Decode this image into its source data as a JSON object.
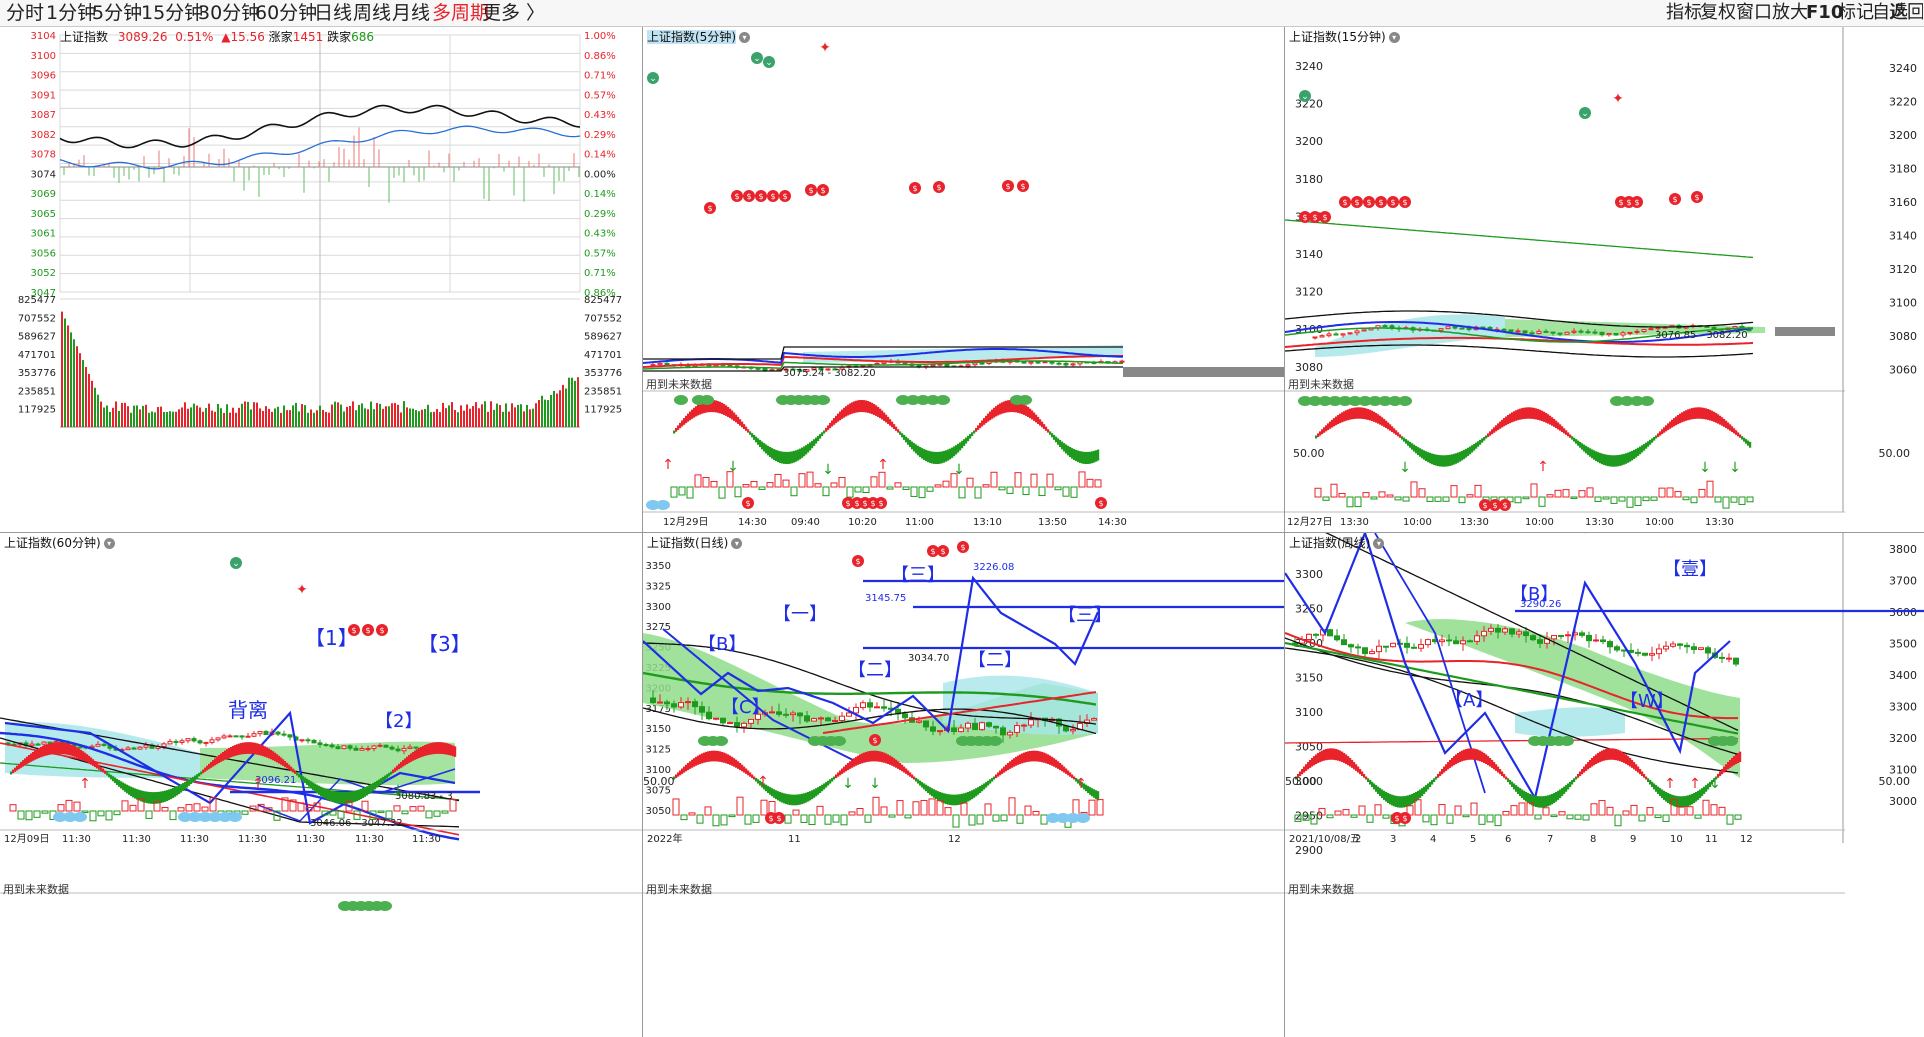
{
  "toolbar": {
    "periods": [
      "分时",
      "1分钟",
      "5分钟",
      "15分钟",
      "30分钟",
      "60分钟",
      "日线",
      "周线",
      "月线",
      "多周期",
      "更多 〉"
    ],
    "active_period": "多周期",
    "right": [
      "指标",
      "复权",
      "窗口",
      "放大",
      "F10",
      "标记",
      "自选",
      "返回"
    ]
  },
  "colors": {
    "up": "#e8232b",
    "down": "#1e9a1e",
    "blue": "#1f2ee6",
    "black": "#111111",
    "grid": "#d9d9d9",
    "cloud_green": "#8fdc8a",
    "cloud_cyan": "#a8e6ea"
  },
  "panels": {
    "tick": {
      "title": "上证指数",
      "price": "3089.26",
      "pct": "0.51%",
      "chg": "▲15.56",
      "up_label": "涨家",
      "up_count": "1451",
      "down_label": "跌家",
      "down_count": "686",
      "price_left": [
        "3104",
        "3100",
        "3096",
        "3091",
        "3087",
        "3082",
        "3078",
        "3074",
        "3069",
        "3065",
        "3061",
        "3056",
        "3052",
        "3047"
      ],
      "price_right": [
        "1.00%",
        "0.86%",
        "0.71%",
        "0.57%",
        "0.43%",
        "0.29%",
        "0.14%",
        "0.00%",
        "0.14%",
        "0.29%",
        "0.43%",
        "0.57%",
        "0.71%",
        "0.86%"
      ],
      "vol_labels": [
        "825477",
        "707552",
        "589627",
        "471701",
        "353776",
        "235851",
        "117925"
      ]
    },
    "m5": {
      "title": "上证指数(5分钟)",
      "future": "用到未来数据",
      "range_label": "3075.24 - 3082.20",
      "time_labels": [
        "12月29日",
        "14:30",
        "09:40",
        "10:20",
        "11:00",
        "13:10",
        "13:50",
        "14:30"
      ]
    },
    "m15": {
      "title": "上证指数(15分钟)",
      "future": "用到未来数据",
      "range_label": "3076.85 - 3082.20",
      "price_labels": [
        "3240",
        "3220",
        "3200",
        "3180",
        "3160",
        "3140",
        "3120",
        "3100",
        "3080"
      ],
      "right_labels": [
        "3240",
        "3220",
        "3200",
        "3180",
        "3160",
        "3140",
        "3120",
        "3100",
        "3080",
        "3060"
      ],
      "osc_label": "50.00",
      "osc_right": "50.00",
      "time_labels": [
        "12月27日",
        "13:30",
        "10:00",
        "13:30",
        "10:00",
        "13:30",
        "10:00",
        "13:30"
      ]
    },
    "m60": {
      "title": "上证指数(60分钟)",
      "future": "用到未来数据",
      "wave1": "【1】",
      "wave2": "【2】",
      "wave3": "【3】",
      "divergence": "背离",
      "level1": "3096.21",
      "range_label": "3046.06 - 3047.32",
      "range_label2": "3080.83 - 3",
      "time_labels": [
        "12月09日",
        "11:30",
        "11:30",
        "11:30",
        "11:30",
        "11:30",
        "11:30",
        "11:30"
      ]
    },
    "day": {
      "title": "上证指数(日线)",
      "future": "用到未来数据",
      "price_labels": [
        "3350",
        "3325",
        "3300",
        "3275",
        "3250",
        "3225",
        "3200",
        "3175",
        "3150",
        "3125",
        "3100",
        "3075",
        "3050"
      ],
      "osc_label": "50.00",
      "level_a": "3145.75",
      "level_b": "3226.08",
      "level_c": "3034.70",
      "waveB": "【B】",
      "waveC": "【C】",
      "wave1": "【一】",
      "wave2": "【二】",
      "wave3": "【三】",
      "wave2b": "【二】",
      "wave3b": "【三】",
      "time_labels": [
        "2022年",
        "11",
        "12"
      ]
    },
    "week": {
      "title": "上证指数(周线)",
      "future": "用到未来数据",
      "price_labels": [
        "3300",
        "3250",
        "3200",
        "3150",
        "3100",
        "3050",
        "3000",
        "2950",
        "2900"
      ],
      "right_labels": [
        "3800",
        "3700",
        "3600",
        "3500",
        "3400",
        "3300",
        "3200",
        "3100",
        "3000"
      ],
      "osc_label": "50.00",
      "osc_right": "50.00",
      "level": "3290.26",
      "waveA": "【A】",
      "waveB": "【B】",
      "waveW": "【W】",
      "wave_one": "【壹】",
      "time_labels": [
        "2021/10/08/五",
        "2",
        "3",
        "4",
        "5",
        "6",
        "7",
        "8",
        "9",
        "10",
        "11",
        "12"
      ]
    }
  }
}
